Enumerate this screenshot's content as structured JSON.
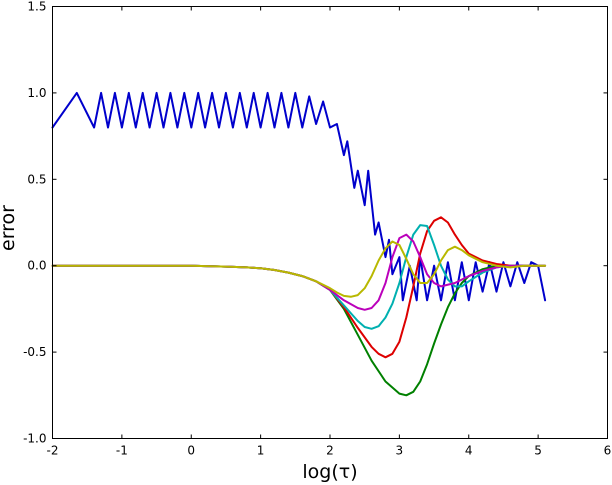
{
  "chart_data": {
    "type": "line",
    "title": "",
    "xlabel": "log(τ)",
    "ylabel": "error",
    "xlim": [
      -2,
      6
    ],
    "ylim": [
      -1.0,
      1.5
    ],
    "xticks": [
      -2,
      -1,
      0,
      1,
      2,
      3,
      4,
      5,
      6
    ],
    "xtick_labels": [
      "-2",
      "-1",
      "0",
      "1",
      "2",
      "3",
      "4",
      "5",
      "6"
    ],
    "yticks": [
      -1.0,
      -0.5,
      0.0,
      0.5,
      1.0,
      1.5
    ],
    "ytick_labels": [
      "-1.0",
      "-0.5",
      "0.0",
      "0.5",
      "1.0",
      "1.5"
    ],
    "grid": false,
    "series": [
      {
        "color": "#0000cc",
        "x": [
          -2.0,
          -1.65,
          -1.4,
          -1.3,
          -1.2,
          -1.1,
          -1.0,
          -0.9,
          -0.8,
          -0.7,
          -0.6,
          -0.5,
          -0.4,
          -0.3,
          -0.2,
          -0.1,
          0.0,
          0.1,
          0.2,
          0.3,
          0.4,
          0.5,
          0.6,
          0.7,
          0.8,
          0.9,
          1.0,
          1.1,
          1.2,
          1.3,
          1.4,
          1.5,
          1.6,
          1.7,
          1.8,
          1.9,
          2.0,
          2.1,
          2.2,
          2.25,
          2.35,
          2.4,
          2.5,
          2.55,
          2.65,
          2.7,
          2.8,
          2.85,
          2.9,
          3.0,
          3.05,
          3.15,
          3.25,
          3.3,
          3.4,
          3.5,
          3.6,
          3.7,
          3.8,
          3.9,
          4.0,
          4.1,
          4.2,
          4.3,
          4.4,
          4.5,
          4.6,
          4.7,
          4.8,
          4.9,
          5.0,
          5.1
        ],
        "y": [
          0.8,
          1.0,
          0.8,
          1.0,
          0.8,
          1.0,
          0.8,
          1.0,
          0.8,
          1.0,
          0.8,
          1.0,
          0.8,
          1.0,
          0.8,
          1.0,
          0.8,
          1.0,
          0.8,
          1.0,
          0.8,
          1.0,
          0.8,
          1.0,
          0.8,
          1.0,
          0.8,
          1.0,
          0.8,
          1.0,
          0.8,
          1.0,
          0.8,
          0.98,
          0.82,
          0.95,
          0.8,
          0.82,
          0.64,
          0.72,
          0.45,
          0.55,
          0.35,
          0.55,
          0.18,
          0.25,
          0.05,
          0.15,
          -0.05,
          0.05,
          -0.2,
          0.0,
          -0.2,
          0.05,
          -0.2,
          0.0,
          -0.2,
          0.02,
          -0.2,
          0.02,
          -0.2,
          0.02,
          -0.15,
          0.02,
          -0.15,
          0.02,
          -0.12,
          0.02,
          -0.1,
          0.02,
          0.0,
          -0.2
        ]
      },
      {
        "color": "#008000",
        "x": [
          -2.0,
          -1.5,
          -1.0,
          -0.5,
          0.0,
          0.5,
          0.8,
          1.0,
          1.2,
          1.4,
          1.6,
          1.8,
          2.0,
          2.2,
          2.4,
          2.6,
          2.8,
          3.0,
          3.1,
          3.2,
          3.3,
          3.4,
          3.5,
          3.6,
          3.7,
          3.8,
          3.9,
          4.0,
          4.2,
          4.4,
          4.6,
          4.8,
          5.0,
          5.1
        ],
        "y": [
          0.0,
          0.0,
          0.0,
          0.0,
          0.0,
          -0.005,
          -0.01,
          -0.015,
          -0.025,
          -0.04,
          -0.06,
          -0.09,
          -0.14,
          -0.25,
          -0.4,
          -0.55,
          -0.67,
          -0.74,
          -0.75,
          -0.73,
          -0.67,
          -0.57,
          -0.45,
          -0.34,
          -0.24,
          -0.16,
          -0.1,
          -0.06,
          -0.02,
          0.0,
          0.0,
          0.0,
          0.0,
          0.0
        ]
      },
      {
        "color": "#dd0000",
        "x": [
          -2.0,
          -1.5,
          -1.0,
          -0.5,
          0.0,
          0.5,
          0.8,
          1.0,
          1.2,
          1.4,
          1.6,
          1.8,
          2.0,
          2.2,
          2.4,
          2.6,
          2.7,
          2.8,
          2.9,
          3.0,
          3.1,
          3.2,
          3.3,
          3.4,
          3.5,
          3.6,
          3.7,
          3.8,
          3.9,
          4.0,
          4.2,
          4.4,
          4.6,
          4.8,
          5.0,
          5.1
        ],
        "y": [
          0.0,
          0.0,
          0.0,
          0.0,
          0.0,
          -0.005,
          -0.01,
          -0.015,
          -0.025,
          -0.04,
          -0.06,
          -0.09,
          -0.14,
          -0.24,
          -0.36,
          -0.47,
          -0.51,
          -0.53,
          -0.51,
          -0.44,
          -0.3,
          -0.12,
          0.07,
          0.2,
          0.26,
          0.28,
          0.25,
          0.18,
          0.12,
          0.07,
          0.03,
          0.01,
          0.0,
          0.0,
          0.0,
          0.0
        ]
      },
      {
        "color": "#00b0b0",
        "x": [
          -2.0,
          -1.5,
          -1.0,
          -0.5,
          0.0,
          0.5,
          0.8,
          1.0,
          1.2,
          1.4,
          1.6,
          1.8,
          2.0,
          2.2,
          2.4,
          2.5,
          2.6,
          2.7,
          2.8,
          2.9,
          3.0,
          3.1,
          3.2,
          3.3,
          3.4,
          3.5,
          3.6,
          3.7,
          3.8,
          3.9,
          4.0,
          4.2,
          4.4,
          4.6,
          4.8,
          5.0,
          5.1
        ],
        "y": [
          0.0,
          0.0,
          0.0,
          0.0,
          0.0,
          -0.005,
          -0.01,
          -0.015,
          -0.025,
          -0.04,
          -0.06,
          -0.09,
          -0.14,
          -0.23,
          -0.32,
          -0.355,
          -0.365,
          -0.35,
          -0.3,
          -0.22,
          -0.1,
          0.05,
          0.18,
          0.235,
          0.23,
          0.12,
          0.0,
          -0.08,
          -0.12,
          -0.12,
          -0.09,
          -0.04,
          -0.01,
          0.0,
          0.0,
          0.0,
          0.0
        ]
      },
      {
        "color": "#bb00bb",
        "x": [
          -2.0,
          -1.5,
          -1.0,
          -0.5,
          0.0,
          0.5,
          0.8,
          1.0,
          1.2,
          1.4,
          1.6,
          1.8,
          2.0,
          2.2,
          2.4,
          2.5,
          2.6,
          2.7,
          2.8,
          2.9,
          3.0,
          3.1,
          3.2,
          3.3,
          3.4,
          3.5,
          3.6,
          3.8,
          4.0,
          4.2,
          4.4,
          4.6,
          4.8,
          5.0,
          5.1
        ],
        "y": [
          0.0,
          0.0,
          0.0,
          0.0,
          0.0,
          -0.005,
          -0.01,
          -0.015,
          -0.025,
          -0.04,
          -0.06,
          -0.09,
          -0.14,
          -0.2,
          -0.245,
          -0.255,
          -0.245,
          -0.2,
          -0.1,
          0.05,
          0.16,
          0.18,
          0.14,
          0.05,
          -0.05,
          -0.1,
          -0.12,
          -0.1,
          -0.06,
          -0.03,
          -0.01,
          0.0,
          0.0,
          0.0,
          0.0
        ]
      },
      {
        "color": "#b8b800",
        "x": [
          -2.0,
          -1.5,
          -1.0,
          -0.5,
          0.0,
          0.5,
          0.8,
          1.0,
          1.2,
          1.4,
          1.6,
          1.8,
          2.0,
          2.1,
          2.2,
          2.3,
          2.4,
          2.5,
          2.6,
          2.7,
          2.8,
          2.9,
          3.0,
          3.1,
          3.2,
          3.3,
          3.4,
          3.5,
          3.6,
          3.7,
          3.8,
          3.9,
          4.0,
          4.2,
          4.4,
          4.6,
          4.8,
          5.0,
          5.1
        ],
        "y": [
          0.0,
          0.0,
          0.0,
          0.0,
          0.0,
          -0.005,
          -0.01,
          -0.015,
          -0.025,
          -0.04,
          -0.06,
          -0.09,
          -0.13,
          -0.155,
          -0.175,
          -0.18,
          -0.17,
          -0.13,
          -0.06,
          0.03,
          0.1,
          0.14,
          0.12,
          0.04,
          -0.05,
          -0.1,
          -0.1,
          -0.05,
          0.03,
          0.09,
          0.11,
          0.09,
          0.06,
          0.02,
          0.0,
          -0.01,
          0.0,
          0.0,
          0.0
        ]
      }
    ]
  }
}
